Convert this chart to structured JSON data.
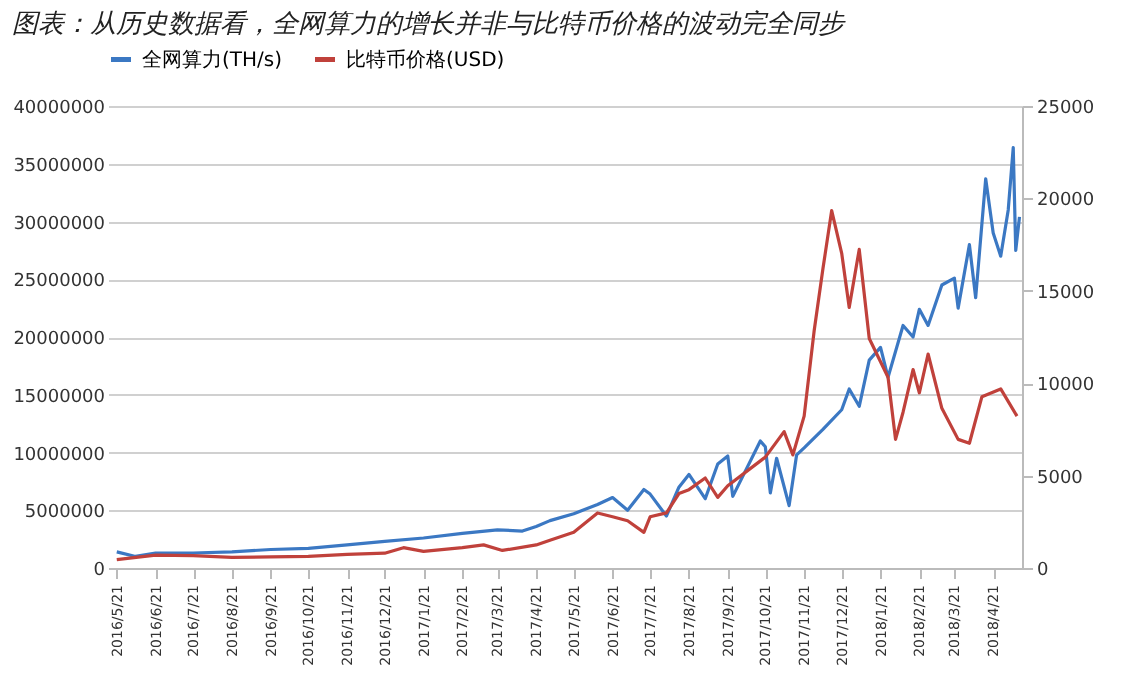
{
  "chart_data": {
    "type": "line",
    "title": "图表：从历史数据看，全网算力的增长并非与比特币价格的波动完全同步",
    "xlim": [
      "2016-05-14",
      "2018-05-14"
    ],
    "xticks": [
      {
        "value": "2016-05-21",
        "label": "2016/5/21"
      },
      {
        "value": "2016-06-21",
        "label": "2016/6/21"
      },
      {
        "value": "2016-07-21",
        "label": "2016/7/21"
      },
      {
        "value": "2016-08-21",
        "label": "2016/8/21"
      },
      {
        "value": "2016-09-21",
        "label": "2016/9/21"
      },
      {
        "value": "2016-10-21",
        "label": "2016/10/21"
      },
      {
        "value": "2016-11-21",
        "label": "2016/11/21"
      },
      {
        "value": "2016-12-21",
        "label": "2016/12/21"
      },
      {
        "value": "2017-01-21",
        "label": "2017/1/21"
      },
      {
        "value": "2017-02-21",
        "label": "2017/2/21"
      },
      {
        "value": "2017-03-21",
        "label": "2017/3/21"
      },
      {
        "value": "2017-04-21",
        "label": "2017/4/21"
      },
      {
        "value": "2017-05-21",
        "label": "2017/5/21"
      },
      {
        "value": "2017-06-21",
        "label": "2017/6/21"
      },
      {
        "value": "2017-07-21",
        "label": "2017/7/21"
      },
      {
        "value": "2017-08-21",
        "label": "2017/8/21"
      },
      {
        "value": "2017-09-21",
        "label": "2017/9/21"
      },
      {
        "value": "2017-10-21",
        "label": "2017/10/21"
      },
      {
        "value": "2017-11-21",
        "label": "2017/11/21"
      },
      {
        "value": "2017-12-21",
        "label": "2017/12/21"
      },
      {
        "value": "2018-01-21",
        "label": "2018/1/21"
      },
      {
        "value": "2018-02-21",
        "label": "2018/2/21"
      },
      {
        "value": "2018-03-21",
        "label": "2018/3/21"
      },
      {
        "value": "2018-04-21",
        "label": "2018/4/21"
      }
    ],
    "ylim": [
      0,
      40000000
    ],
    "yticks": [
      0,
      5000000,
      10000000,
      15000000,
      20000000,
      25000000,
      30000000,
      35000000,
      40000000
    ],
    "y2lim": [
      0,
      25000
    ],
    "y2ticks": [
      0,
      5000,
      10000,
      15000,
      20000,
      25000
    ],
    "grid": "y",
    "legend": "top",
    "series": [
      {
        "name": "全网算力(TH/s)",
        "color": "#3b78c3",
        "x": [
          "2016-05-21",
          "2016-06-05",
          "2016-06-21",
          "2016-07-21",
          "2016-08-21",
          "2016-09-21",
          "2016-10-21",
          "2016-11-21",
          "2016-12-21",
          "2017-01-21",
          "2017-02-21",
          "2017-03-21",
          "2017-04-10",
          "2017-04-21",
          "2017-05-02",
          "2017-05-21",
          "2017-06-09",
          "2017-06-21",
          "2017-07-03",
          "2017-07-16",
          "2017-07-21",
          "2017-08-03",
          "2017-08-13",
          "2017-08-21",
          "2017-09-03",
          "2017-09-13",
          "2017-09-21",
          "2017-09-25",
          "2017-10-17",
          "2017-10-21",
          "2017-10-25",
          "2017-10-30",
          "2017-11-09",
          "2017-11-15",
          "2017-11-21",
          "2017-12-06",
          "2017-12-21",
          "2017-12-27",
          "2018-01-04",
          "2018-01-12",
          "2018-01-21",
          "2018-01-27",
          "2018-02-08",
          "2018-02-16",
          "2018-02-21",
          "2018-02-28",
          "2018-03-11",
          "2018-03-21",
          "2018-03-24",
          "2018-04-02",
          "2018-04-07",
          "2018-04-15",
          "2018-04-21",
          "2018-04-27",
          "2018-05-03",
          "2018-05-07",
          "2018-05-09",
          "2018-05-12"
        ],
        "values": [
          1400000,
          1000000,
          1300000,
          1300000,
          1400000,
          1600000,
          1700000,
          2000000,
          2300000,
          2600000,
          3000000,
          3300000,
          3200000,
          3600000,
          4100000,
          4700000,
          5500000,
          6100000,
          5000000,
          6800000,
          6400000,
          4500000,
          7000000,
          8100000,
          6000000,
          9000000,
          9700000,
          6200000,
          11000000,
          10500000,
          6500000,
          9500000,
          5400000,
          9800000,
          10400000,
          12000000,
          13700000,
          15500000,
          14000000,
          18000000,
          19100000,
          16500000,
          21000000,
          20000000,
          22400000,
          21000000,
          24500000,
          25100000,
          22500000,
          28000000,
          23400000,
          33700000,
          29000000,
          27000000,
          31000000,
          36400000,
          27500000,
          30400000
        ]
      },
      {
        "name": "比特币价格(USD)",
        "color": "#c0413b",
        "axis": "y2",
        "x": [
          "2016-05-21",
          "2016-06-21",
          "2016-07-21",
          "2016-08-21",
          "2016-09-21",
          "2016-10-21",
          "2016-11-21",
          "2016-12-21",
          "2017-01-05",
          "2017-01-21",
          "2017-02-21",
          "2017-03-10",
          "2017-03-25",
          "2017-04-21",
          "2017-05-02",
          "2017-05-21",
          "2017-06-09",
          "2017-06-21",
          "2017-07-03",
          "2017-07-16",
          "2017-07-21",
          "2017-08-03",
          "2017-08-13",
          "2017-08-21",
          "2017-09-03",
          "2017-09-13",
          "2017-09-21",
          "2017-10-21",
          "2017-11-05",
          "2017-11-12",
          "2017-11-21",
          "2017-11-29",
          "2017-12-06",
          "2017-12-13",
          "2017-12-21",
          "2017-12-27",
          "2018-01-04",
          "2018-01-12",
          "2018-01-21",
          "2018-01-27",
          "2018-02-02",
          "2018-02-08",
          "2018-02-16",
          "2018-02-21",
          "2018-02-28",
          "2018-03-11",
          "2018-03-24",
          "2018-04-02",
          "2018-04-12",
          "2018-04-27",
          "2018-05-10"
        ],
        "values": [
          450,
          700,
          670,
          580,
          600,
          630,
          740,
          800,
          1100,
          900,
          1100,
          1250,
          950,
          1250,
          1500,
          1930,
          2980,
          2770,
          2560,
          1930,
          2770,
          2980,
          4030,
          4240,
          4870,
          3820,
          4450,
          6000,
          7380,
          6120,
          8220,
          12840,
          16190,
          19340,
          17030,
          14100,
          17240,
          12420,
          11160,
          10320,
          6960,
          8430,
          10740,
          9480,
          11580,
          8640,
          6960,
          6750,
          9270,
          9690,
          8220
        ]
      }
    ]
  }
}
